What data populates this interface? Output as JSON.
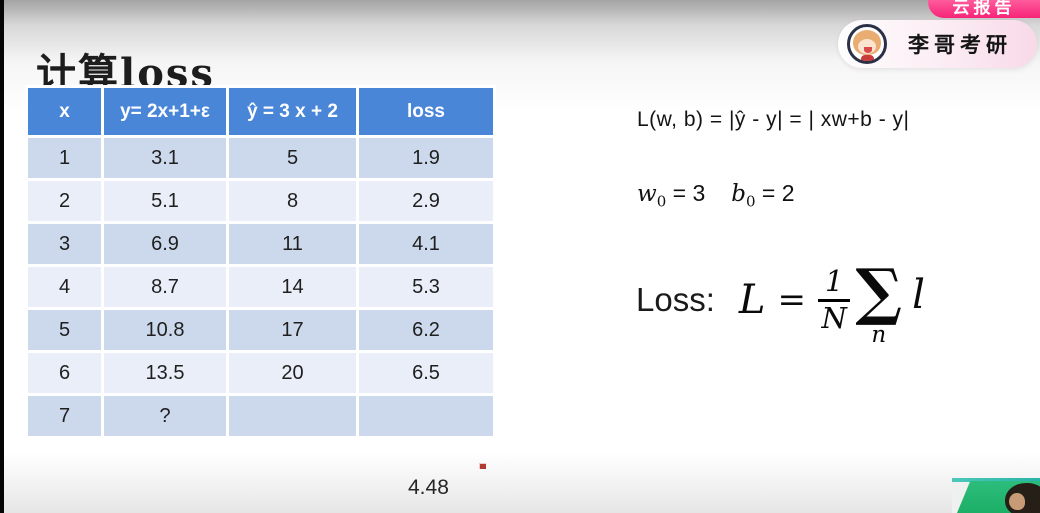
{
  "slide": {
    "title": "计算loss",
    "table": {
      "headers": [
        "x",
        "y= 2x+1+ε",
        "ŷ  = 3 x + 2",
        "loss"
      ],
      "rows": [
        [
          "1",
          "3.1",
          "5",
          "1.9"
        ],
        [
          "2",
          "5.1",
          "8",
          "2.9"
        ],
        [
          "3",
          "6.9",
          "11",
          "4.1"
        ],
        [
          "4",
          "8.7",
          "14",
          "5.3"
        ],
        [
          "5",
          "10.8",
          "17",
          "6.2"
        ],
        [
          "6",
          "13.5",
          "20",
          "6.5"
        ],
        [
          "7",
          "?",
          "",
          ""
        ]
      ],
      "colors": {
        "header_bg": "#4a86d8",
        "header_text": "#ffffff",
        "row_dark": "#ccd9ec",
        "row_light": "#e9eef8"
      }
    },
    "mean_loss_value": "4.48",
    "loss_definition": "L(w,  b) = |ŷ - y| = | xw+b - y|",
    "initial_params": {
      "w_name": "w",
      "w_sub": "0",
      "w_rel": "=",
      "w_value": "3",
      "b_name": "b",
      "b_sub": "0",
      "b_rel": "=",
      "b_value": "2"
    },
    "loss_formula": {
      "label": "Loss:",
      "lhs": "L",
      "relation": "=",
      "numerator": "1",
      "denominator": "N",
      "sigma": "∑",
      "sigma_subscript": "n",
      "term": "l"
    }
  },
  "overlay": {
    "channel_badge": {
      "name": "李哥考研"
    },
    "corner_button_label": "云报告",
    "accent_pink": "#f72377",
    "greenscreen_color": "#1daf66"
  }
}
